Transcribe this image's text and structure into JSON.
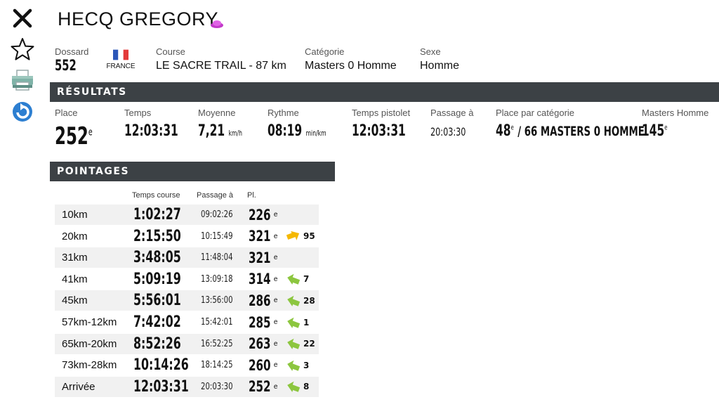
{
  "runner": {
    "name": "HECQ GREGORY"
  },
  "info": {
    "dossard_label": "Dossard",
    "dossard": "552",
    "country": "FRANCE",
    "course_label": "Course",
    "course": "LE SACRE TRAIL - 87 km",
    "categorie_label": "Catégorie",
    "categorie": "Masters 0 Homme",
    "sexe_label": "Sexe",
    "sexe": "Homme"
  },
  "results": {
    "title": "RÉSULTATS",
    "place_label": "Place",
    "place": "252",
    "place_sup": "e",
    "temps_label": "Temps",
    "temps": "12:03:31",
    "moyenne_label": "Moyenne",
    "moyenne": "7,21",
    "moyenne_unit": "km/h",
    "rythme_label": "Rythme",
    "rythme": "08:19",
    "rythme_unit": "min/km",
    "pistolet_label": "Temps pistolet",
    "pistolet": "12:03:31",
    "passage_label": "Passage à",
    "passage": "20:03:30",
    "cat_label": "Place par catégorie",
    "cat_place": "48",
    "cat_sup": "e",
    "cat_total": "/ 66 MASTERS 0 HOMME",
    "mh_label": "Masters Homme",
    "mh_place": "145",
    "mh_sup": "e"
  },
  "pointages": {
    "title": "POINTAGES",
    "col_temps": "Temps course",
    "col_passage": "Passage à",
    "col_pl": "Pl.",
    "rows": [
      {
        "name": "10km",
        "time": "1:02:27",
        "pass": "09:02:26",
        "pl": "226",
        "sup": "e",
        "delta": "",
        "trend": "none"
      },
      {
        "name": "20km",
        "time": "2:15:50",
        "pass": "10:15:49",
        "pl": "321",
        "sup": "e",
        "delta": "95",
        "trend": "down"
      },
      {
        "name": "31km",
        "time": "3:48:05",
        "pass": "11:48:04",
        "pl": "321",
        "sup": "e",
        "delta": "",
        "trend": "none"
      },
      {
        "name": "41km",
        "time": "5:09:19",
        "pass": "13:09:18",
        "pl": "314",
        "sup": "e",
        "delta": "7",
        "trend": "up"
      },
      {
        "name": "45km",
        "time": "5:56:01",
        "pass": "13:56:00",
        "pl": "286",
        "sup": "e",
        "delta": "28",
        "trend": "up"
      },
      {
        "name": "57km-12km",
        "time": "7:42:02",
        "pass": "15:42:01",
        "pl": "285",
        "sup": "e",
        "delta": "1",
        "trend": "up"
      },
      {
        "name": "65km-20km",
        "time": "8:52:26",
        "pass": "16:52:25",
        "pl": "263",
        "sup": "e",
        "delta": "22",
        "trend": "up"
      },
      {
        "name": "73km-28km",
        "time": "10:14:26",
        "pass": "18:14:25",
        "pl": "260",
        "sup": "e",
        "delta": "3",
        "trend": "up"
      },
      {
        "name": "Arrivée",
        "time": "12:03:31",
        "pass": "20:03:30",
        "pl": "252",
        "sup": "e",
        "delta": "8",
        "trend": "up"
      }
    ]
  },
  "colors": {
    "bar": "#3c4145",
    "up": "#8cc63f",
    "down": "#f5b800",
    "accent": "#2d7fd1"
  },
  "icons": [
    "close-icon",
    "star-icon",
    "print-icon",
    "refresh-icon"
  ]
}
